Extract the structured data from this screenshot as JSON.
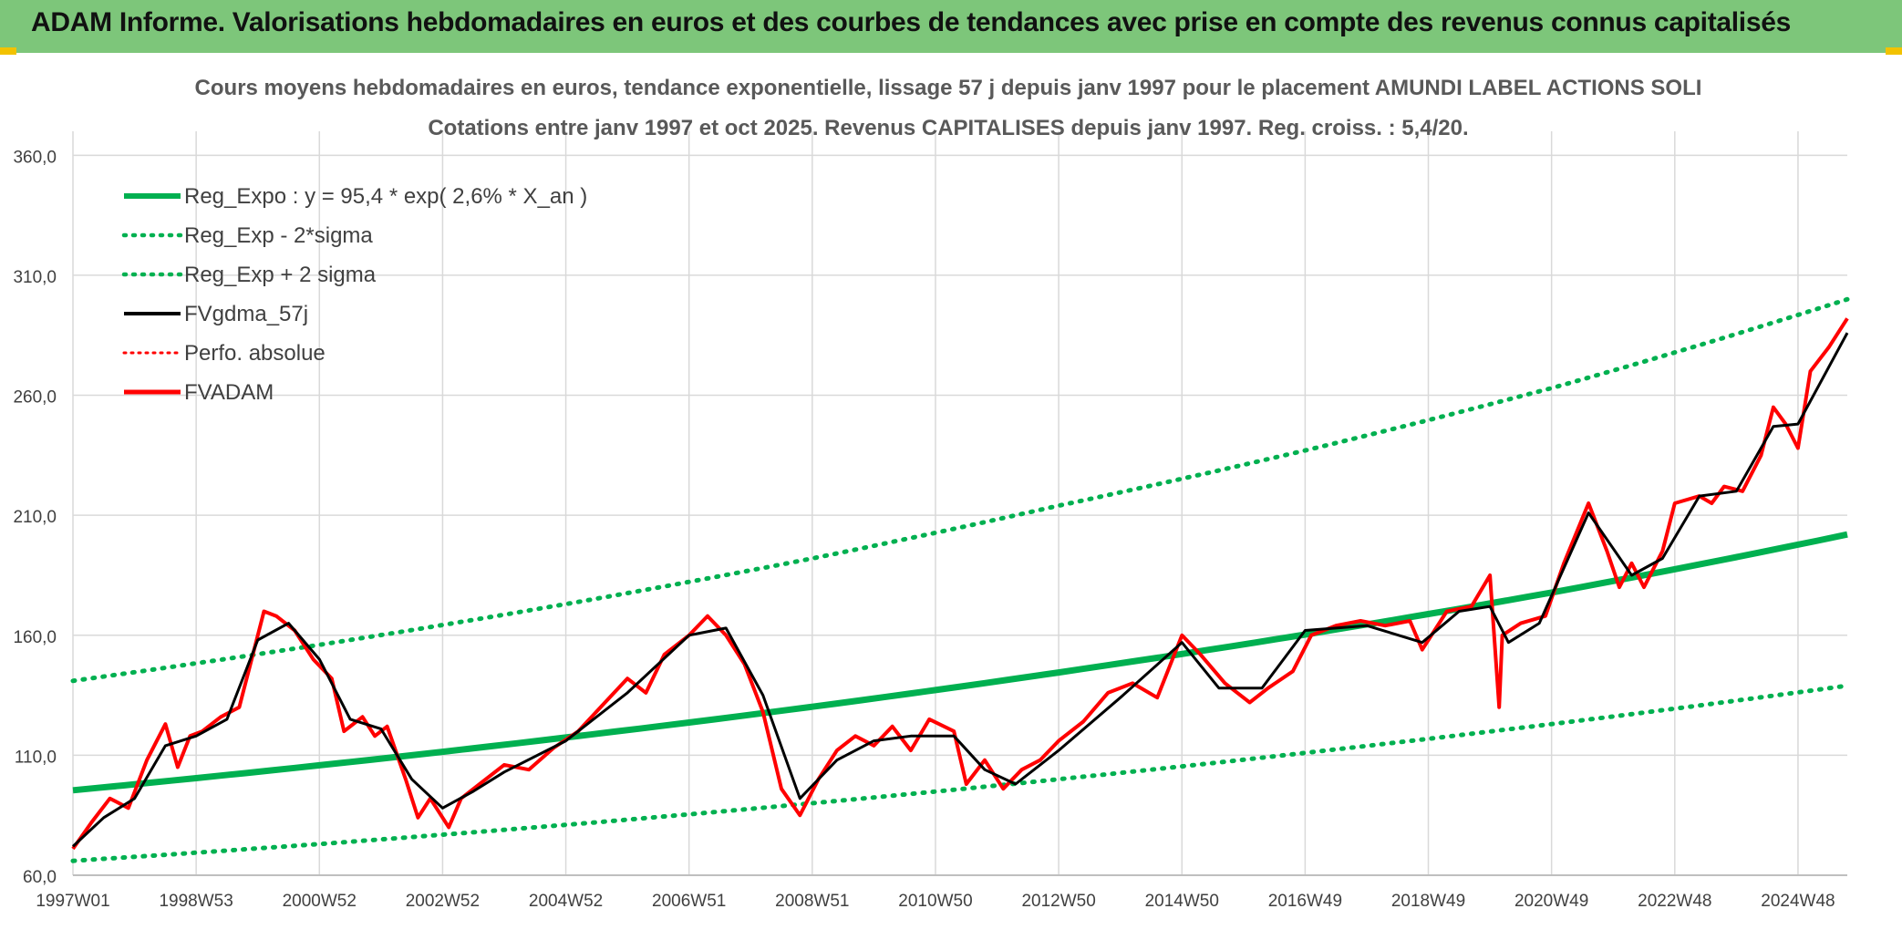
{
  "header": {
    "title": "ADAM Informe. Valorisations hebdomadaires en euros et des courbes de tendances avec prise en compte des revenus connus capitalisés"
  },
  "colors": {
    "header_bg": "#7dc67a",
    "accent_corner": "#f2c200",
    "reg_expo": "#00b050",
    "fvgdma": "#000000",
    "fvadam": "#ff0000",
    "perfo": "#ff0000",
    "grid": "#d9d9d9"
  },
  "chart_data": {
    "type": "line",
    "title": "Cours moyens hebdomadaires en euros, tendance exponentielle, lissage 57 j depuis janv 1997 pour le placement AMUNDI LABEL ACTIONS SOLI",
    "subtitle": "Cotations entre janv 1997 et oct 2025. Revenus CAPITALISES depuis janv 1997. Reg. croiss. : 5,4/20.",
    "ylim": [
      60,
      370
    ],
    "y_ticks": [
      "60,0",
      "110,0",
      "160,0",
      "210,0",
      "260,0",
      "310,0",
      "360,0"
    ],
    "y_tick_values": [
      60,
      110,
      160,
      210,
      260,
      310,
      360
    ],
    "x_ticks": [
      "1997W01",
      "1998W53",
      "2000W52",
      "2002W52",
      "2004W52",
      "2006W51",
      "2008W51",
      "2010W50",
      "2012W50",
      "2014W50",
      "2016W49",
      "2018W49",
      "2020W49",
      "2022W48",
      "2024W48"
    ],
    "x_tick_years": [
      1997,
      1999,
      2001,
      2003,
      2005,
      2007,
      2009,
      2011,
      2013,
      2015,
      2017,
      2019,
      2021,
      2023,
      2025
    ],
    "xlim": [
      1997,
      2025.8
    ],
    "legend": [
      "Reg_Expo : y = 95,4 * exp( 2,6% *  X_an )",
      "Reg_Exp - 2*sigma",
      "Reg_Exp + 2 sigma",
      "FVgdma_57j",
      "Perfo. absolue",
      "FVADAM"
    ],
    "legend_placement": "top-left",
    "grid": true,
    "series": [
      {
        "name": "Reg_Expo : y = 95,4 * exp( 2,6% *  X_an )",
        "x": [
          1997,
          2001,
          2005,
          2009,
          2013,
          2017,
          2021,
          2025.8
        ],
        "values": [
          95.4,
          105.8,
          117.4,
          130.2,
          144.5,
          160.3,
          177.8,
          202.0
        ]
      },
      {
        "name": "Reg_Exp - 2*sigma",
        "x": [
          1997,
          2001,
          2005,
          2009,
          2013,
          2017,
          2021,
          2025.8
        ],
        "values": [
          66,
          73,
          81,
          90,
          100,
          111,
          123,
          139
        ]
      },
      {
        "name": "Reg_Exp + 2 sigma",
        "x": [
          1997,
          2001,
          2005,
          2009,
          2013,
          2017,
          2021,
          2025.8
        ],
        "values": [
          141,
          156,
          173,
          192,
          214,
          237,
          263,
          300
        ]
      },
      {
        "name": "FVADAM",
        "x": [
          1997.0,
          1997.3,
          1997.6,
          1997.9,
          1998.2,
          1998.5,
          1998.7,
          1998.9,
          1999.1,
          1999.4,
          1999.7,
          1999.9,
          2000.1,
          2000.3,
          2000.6,
          2000.9,
          2001.2,
          2001.4,
          2001.7,
          2001.9,
          2002.1,
          2002.4,
          2002.6,
          2002.8,
          2003.1,
          2003.3,
          2003.6,
          2004.0,
          2004.4,
          2004.8,
          2005.2,
          2005.6,
          2006.0,
          2006.3,
          2006.6,
          2007.0,
          2007.3,
          2007.6,
          2007.9,
          2008.2,
          2008.5,
          2008.8,
          2009.1,
          2009.4,
          2009.7,
          2010.0,
          2010.3,
          2010.6,
          2010.9,
          2011.3,
          2011.5,
          2011.8,
          2012.1,
          2012.4,
          2012.7,
          2013.0,
          2013.4,
          2013.8,
          2014.2,
          2014.6,
          2015.0,
          2015.3,
          2015.7,
          2016.1,
          2016.4,
          2016.8,
          2017.1,
          2017.5,
          2017.9,
          2018.3,
          2018.7,
          2018.9,
          2019.3,
          2019.7,
          2020.0,
          2020.15,
          2020.2,
          2020.5,
          2020.9,
          2021.2,
          2021.6,
          2021.9,
          2022.1,
          2022.3,
          2022.5,
          2022.8,
          2023.0,
          2023.4,
          2023.6,
          2023.8,
          2024.1,
          2024.4,
          2024.6,
          2024.8,
          2025.0,
          2025.2,
          2025.5,
          2025.8
        ],
        "values": [
          71,
          82,
          92,
          88,
          108,
          123,
          105,
          118,
          120,
          126,
          130,
          150,
          170,
          168,
          162,
          150,
          142,
          120,
          126,
          118,
          122,
          100,
          84,
          92,
          80,
          92,
          98,
          106,
          104,
          113,
          120,
          131,
          142,
          136,
          152,
          160,
          168,
          160,
          148,
          128,
          96,
          85,
          100,
          112,
          118,
          114,
          122,
          112,
          125,
          120,
          98,
          108,
          96,
          104,
          108,
          116,
          124,
          136,
          140,
          134,
          160,
          152,
          140,
          132,
          138,
          145,
          160,
          164,
          166,
          164,
          166,
          154,
          170,
          172,
          185,
          130,
          160,
          165,
          168,
          190,
          215,
          195,
          180,
          190,
          180,
          195,
          215,
          218,
          215,
          222,
          220,
          235,
          255,
          248,
          238,
          270,
          280,
          292
        ]
      },
      {
        "name": "FVgdma_57j",
        "x": [
          1997.0,
          1997.5,
          1998.0,
          1998.5,
          1999.0,
          1999.5,
          2000.0,
          2000.5,
          2001.0,
          2001.5,
          2002.0,
          2002.5,
          2003.0,
          2003.5,
          2004.0,
          2005.0,
          2006.0,
          2007.0,
          2007.6,
          2008.2,
          2008.8,
          2009.4,
          2010.0,
          2010.6,
          2011.3,
          2011.8,
          2012.3,
          2013.0,
          2014.0,
          2015.0,
          2015.6,
          2016.3,
          2017.0,
          2018.0,
          2018.9,
          2019.5,
          2020.0,
          2020.3,
          2020.8,
          2021.6,
          2022.3,
          2022.8,
          2023.4,
          2024.0,
          2024.6,
          2025.0,
          2025.8
        ],
        "values": [
          72,
          84,
          92,
          114,
          118,
          125,
          158,
          165,
          150,
          125,
          121,
          100,
          88,
          95,
          103,
          116,
          136,
          160,
          163,
          135,
          92,
          108,
          116,
          118,
          118,
          104,
          98,
          112,
          134,
          157,
          138,
          138,
          162,
          164,
          157,
          170,
          172,
          157,
          165,
          211,
          185,
          192,
          218,
          220,
          247,
          248,
          286
        ]
      }
    ]
  }
}
